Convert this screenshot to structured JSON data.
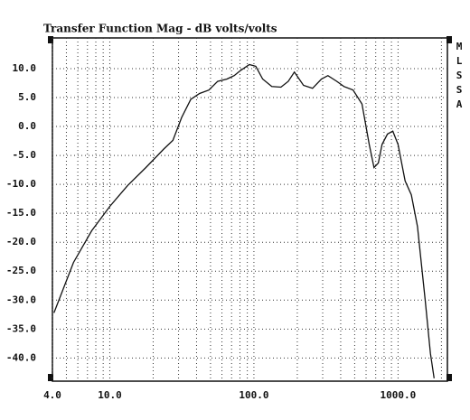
{
  "chart_data": {
    "type": "line",
    "title": "Transfer Function Mag - dB volts/volts",
    "side_labels": [
      "M",
      "L",
      "S",
      "S",
      "A"
    ],
    "log_x": true,
    "grid": true,
    "color": "#111111",
    "xlim": [
      4,
      2200
    ],
    "ylim": [
      -44,
      15.3
    ],
    "xticks": [
      {
        "value": 4,
        "label": "4.0"
      },
      {
        "value": 10,
        "label": "10.0"
      },
      {
        "value": 100,
        "label": "100.0"
      },
      {
        "value": 1000,
        "label": "1000.0"
      }
    ],
    "xminor_ticks": [
      5,
      6,
      7,
      8,
      9,
      20,
      30,
      40,
      50,
      60,
      70,
      80,
      90,
      200,
      300,
      400,
      500,
      600,
      700,
      800,
      900,
      2000
    ],
    "yticks": [
      {
        "value": 10,
        "label": "10.0"
      },
      {
        "value": 5,
        "label": "5.0"
      },
      {
        "value": 0,
        "label": "0.0"
      },
      {
        "value": -5,
        "label": "-5.0"
      },
      {
        "value": -10,
        "label": "-10.0"
      },
      {
        "value": -15,
        "label": "-15.0"
      },
      {
        "value": -20,
        "label": "-20.0"
      },
      {
        "value": -25,
        "label": "-25.0"
      },
      {
        "value": -30,
        "label": "-30.0"
      },
      {
        "value": -35,
        "label": "-35.0"
      },
      {
        "value": -40,
        "label": "-40.0"
      }
    ],
    "x": [
      4.1,
      5.6,
      7.5,
      10,
      13.3,
      17.8,
      23.7,
      27.4,
      31.6,
      36.5,
      42,
      48.7,
      56,
      65,
      73,
      81,
      93,
      103,
      115,
      133,
      154,
      173,
      191,
      221,
      255,
      294,
      326,
      376,
      422,
      487,
      562,
      631,
      681,
      730,
      774,
      845,
      920,
      1000,
      1119,
      1237,
      1365,
      1539,
      1676,
      1778
    ],
    "values": [
      -32.2,
      -23.5,
      -18,
      -13.8,
      -10.2,
      -7.1,
      -3.9,
      -2.4,
      1.6,
      4.7,
      5.7,
      6.3,
      7.8,
      8.2,
      8.8,
      9.7,
      10.7,
      10.4,
      8.2,
      6.9,
      6.8,
      7.8,
      9.4,
      7.1,
      6.6,
      8.2,
      8.8,
      7.8,
      6.9,
      6.3,
      3.9,
      -3.1,
      -7.1,
      -6.3,
      -3.1,
      -1.3,
      -0.8,
      -3.1,
      -9.4,
      -11.8,
      -17.3,
      -29.8,
      -39.2,
      -43.5
    ]
  }
}
